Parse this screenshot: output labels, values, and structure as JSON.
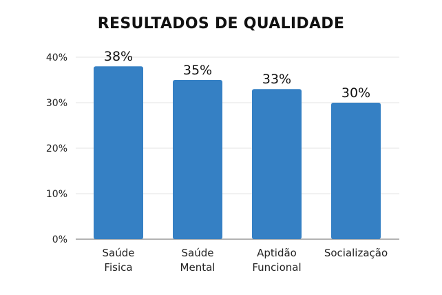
{
  "chart_data": {
    "type": "bar",
    "title": "RESULTADOS DE QUALIDADE",
    "categories": [
      [
        "Saúde",
        "Fisica"
      ],
      [
        "Saúde",
        "Mental"
      ],
      [
        "Aptidão",
        "Funcional"
      ],
      [
        "Socialização"
      ]
    ],
    "values": [
      38,
      35,
      33,
      30
    ],
    "value_labels": [
      "38%",
      "35%",
      "33%",
      "30%"
    ],
    "ylim": [
      0,
      40
    ],
    "yticks": [
      0,
      10,
      20,
      30,
      40
    ],
    "ytick_labels": [
      "0%",
      "10%",
      "20%",
      "30%",
      "40%"
    ],
    "xlabel": "",
    "ylabel": "",
    "grid": true,
    "bar_color": "#3580c4"
  }
}
